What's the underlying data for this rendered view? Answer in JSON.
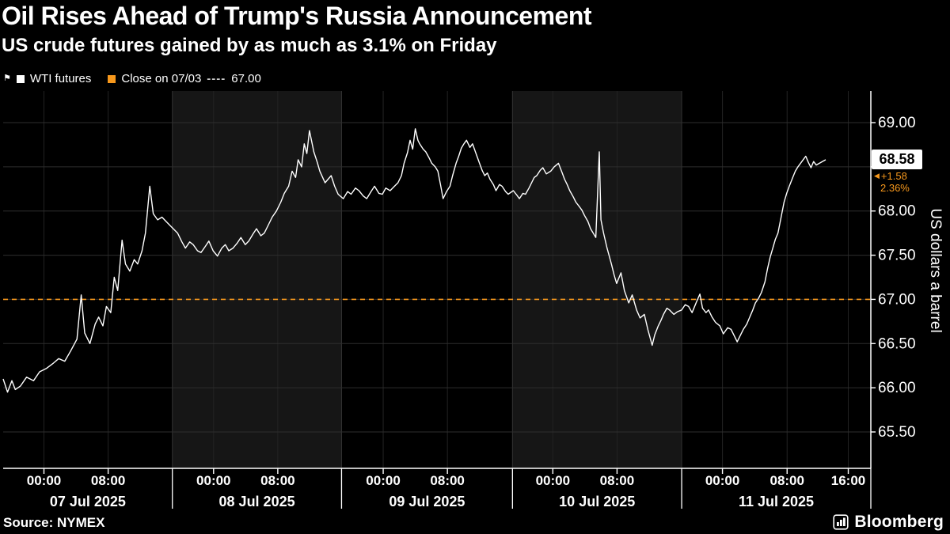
{
  "header": {
    "title": "Oil Rises Ahead of Trump's Russia Announcement",
    "subtitle": "US crude futures gained by as much as 3.1% on Friday"
  },
  "legend": {
    "wti_label": "WTI futures",
    "close_label": "Close on 07/03",
    "dash_sample": "----",
    "close_value": "67.00"
  },
  "footer": {
    "source": "Source: NYMEX",
    "brand": "Bloomberg"
  },
  "chart": {
    "y_axis_label": "US dollars a barrel",
    "last": {
      "price_label": "68.58",
      "change": "+1.58",
      "change_pct": "2.36%"
    },
    "colors": {
      "line": "#ffffff",
      "reference": "#f7981c",
      "band": "#161616",
      "background": "#000000",
      "grid_h": "#2e2e2e",
      "grid_v": "#232323",
      "boundary": "#333333",
      "frame": "#ffffff"
    }
  },
  "chart_data": {
    "type": "line",
    "title": "Oil Rises Ahead of Trump's Russia Announcement",
    "subtitle": "US crude futures gained by as much as 3.1% on Friday",
    "x_unit": "fraction of x-axis span, 07 Jul 2025 00:00 through 11 Jul 2025 ~16:00",
    "series": [
      {
        "name": "WTI futures",
        "color": "#ffffff",
        "points": [
          [
            0.0,
            66.1
          ],
          [
            0.005,
            65.95
          ],
          [
            0.01,
            66.08
          ],
          [
            0.014,
            65.98
          ],
          [
            0.02,
            66.02
          ],
          [
            0.027,
            66.12
          ],
          [
            0.035,
            66.08
          ],
          [
            0.042,
            66.18
          ],
          [
            0.05,
            66.22
          ],
          [
            0.058,
            66.28
          ],
          [
            0.064,
            66.33
          ],
          [
            0.071,
            66.3
          ],
          [
            0.078,
            66.42
          ],
          [
            0.085,
            66.55
          ],
          [
            0.09,
            67.05
          ],
          [
            0.094,
            66.62
          ],
          [
            0.1,
            66.5
          ],
          [
            0.106,
            66.72
          ],
          [
            0.11,
            66.8
          ],
          [
            0.115,
            66.7
          ],
          [
            0.119,
            66.92
          ],
          [
            0.124,
            66.85
          ],
          [
            0.128,
            67.25
          ],
          [
            0.132,
            67.1
          ],
          [
            0.137,
            67.67
          ],
          [
            0.141,
            67.4
          ],
          [
            0.146,
            67.32
          ],
          [
            0.151,
            67.45
          ],
          [
            0.155,
            67.4
          ],
          [
            0.16,
            67.55
          ],
          [
            0.164,
            67.75
          ],
          [
            0.169,
            68.28
          ],
          [
            0.173,
            67.97
          ],
          [
            0.178,
            67.9
          ],
          [
            0.183,
            67.93
          ],
          [
            0.188,
            67.88
          ],
          [
            0.192,
            67.84
          ],
          [
            0.201,
            67.75
          ],
          [
            0.206,
            67.65
          ],
          [
            0.21,
            67.58
          ],
          [
            0.215,
            67.65
          ],
          [
            0.219,
            67.62
          ],
          [
            0.224,
            67.55
          ],
          [
            0.228,
            67.53
          ],
          [
            0.233,
            67.6
          ],
          [
            0.237,
            67.66
          ],
          [
            0.242,
            67.55
          ],
          [
            0.247,
            67.49
          ],
          [
            0.252,
            67.58
          ],
          [
            0.256,
            67.62
          ],
          [
            0.26,
            67.55
          ],
          [
            0.265,
            67.58
          ],
          [
            0.27,
            67.64
          ],
          [
            0.274,
            67.7
          ],
          [
            0.279,
            67.62
          ],
          [
            0.283,
            67.66
          ],
          [
            0.288,
            67.74
          ],
          [
            0.292,
            67.8
          ],
          [
            0.297,
            67.72
          ],
          [
            0.301,
            67.75
          ],
          [
            0.306,
            67.85
          ],
          [
            0.31,
            67.93
          ],
          [
            0.315,
            68.0
          ],
          [
            0.32,
            68.1
          ],
          [
            0.324,
            68.2
          ],
          [
            0.329,
            68.28
          ],
          [
            0.333,
            68.45
          ],
          [
            0.337,
            68.38
          ],
          [
            0.34,
            68.58
          ],
          [
            0.344,
            68.5
          ],
          [
            0.347,
            68.76
          ],
          [
            0.35,
            68.65
          ],
          [
            0.353,
            68.91
          ],
          [
            0.358,
            68.67
          ],
          [
            0.362,
            68.55
          ],
          [
            0.365,
            68.45
          ],
          [
            0.371,
            68.32
          ],
          [
            0.378,
            68.4
          ],
          [
            0.382,
            68.28
          ],
          [
            0.386,
            68.19
          ],
          [
            0.392,
            68.14
          ],
          [
            0.397,
            68.22
          ],
          [
            0.401,
            68.19
          ],
          [
            0.406,
            68.26
          ],
          [
            0.41,
            68.23
          ],
          [
            0.415,
            68.17
          ],
          [
            0.419,
            68.14
          ],
          [
            0.424,
            68.22
          ],
          [
            0.428,
            68.28
          ],
          [
            0.433,
            68.2
          ],
          [
            0.437,
            68.19
          ],
          [
            0.441,
            68.26
          ],
          [
            0.446,
            68.23
          ],
          [
            0.451,
            68.28
          ],
          [
            0.455,
            68.32
          ],
          [
            0.459,
            68.4
          ],
          [
            0.462,
            68.54
          ],
          [
            0.466,
            68.66
          ],
          [
            0.469,
            68.8
          ],
          [
            0.472,
            68.7
          ],
          [
            0.475,
            68.93
          ],
          [
            0.478,
            68.8
          ],
          [
            0.48,
            68.76
          ],
          [
            0.484,
            68.7
          ],
          [
            0.487,
            68.67
          ],
          [
            0.491,
            68.6
          ],
          [
            0.494,
            68.54
          ],
          [
            0.498,
            68.5
          ],
          [
            0.501,
            68.45
          ],
          [
            0.504,
            68.3
          ],
          [
            0.507,
            68.14
          ],
          [
            0.511,
            68.22
          ],
          [
            0.515,
            68.28
          ],
          [
            0.518,
            68.4
          ],
          [
            0.522,
            68.54
          ],
          [
            0.525,
            68.62
          ],
          [
            0.528,
            68.71
          ],
          [
            0.531,
            68.76
          ],
          [
            0.534,
            68.8
          ],
          [
            0.538,
            68.72
          ],
          [
            0.541,
            68.76
          ],
          [
            0.545,
            68.65
          ],
          [
            0.549,
            68.54
          ],
          [
            0.552,
            68.46
          ],
          [
            0.555,
            68.4
          ],
          [
            0.558,
            68.43
          ],
          [
            0.561,
            68.36
          ],
          [
            0.565,
            68.3
          ],
          [
            0.568,
            68.23
          ],
          [
            0.572,
            68.3
          ],
          [
            0.575,
            68.28
          ],
          [
            0.579,
            68.22
          ],
          [
            0.582,
            68.19
          ],
          [
            0.588,
            68.23
          ],
          [
            0.592,
            68.18
          ],
          [
            0.595,
            68.14
          ],
          [
            0.599,
            68.2
          ],
          [
            0.602,
            68.19
          ],
          [
            0.606,
            68.26
          ],
          [
            0.609,
            68.32
          ],
          [
            0.612,
            68.38
          ],
          [
            0.615,
            68.4
          ],
          [
            0.619,
            68.46
          ],
          [
            0.622,
            68.49
          ],
          [
            0.626,
            68.42
          ],
          [
            0.631,
            68.45
          ],
          [
            0.635,
            68.5
          ],
          [
            0.64,
            68.54
          ],
          [
            0.644,
            68.44
          ],
          [
            0.647,
            68.36
          ],
          [
            0.65,
            68.3
          ],
          [
            0.653,
            68.23
          ],
          [
            0.657,
            68.16
          ],
          [
            0.66,
            68.1
          ],
          [
            0.664,
            68.05
          ],
          [
            0.667,
            68.01
          ],
          [
            0.67,
            67.95
          ],
          [
            0.674,
            67.88
          ],
          [
            0.677,
            67.8
          ],
          [
            0.68,
            67.75
          ],
          [
            0.683,
            67.7
          ],
          [
            0.687,
            68.67
          ],
          [
            0.689,
            67.9
          ],
          [
            0.692,
            67.75
          ],
          [
            0.696,
            67.58
          ],
          [
            0.701,
            67.4
          ],
          [
            0.704,
            67.28
          ],
          [
            0.707,
            67.18
          ],
          [
            0.712,
            67.3
          ],
          [
            0.716,
            67.1
          ],
          [
            0.721,
            66.96
          ],
          [
            0.725,
            67.05
          ],
          [
            0.73,
            66.88
          ],
          [
            0.734,
            66.79
          ],
          [
            0.739,
            66.83
          ],
          [
            0.743,
            66.66
          ],
          [
            0.748,
            66.48
          ],
          [
            0.751,
            66.6
          ],
          [
            0.755,
            66.7
          ],
          [
            0.758,
            66.76
          ],
          [
            0.761,
            66.83
          ],
          [
            0.765,
            66.9
          ],
          [
            0.768,
            66.88
          ],
          [
            0.773,
            66.83
          ],
          [
            0.777,
            66.86
          ],
          [
            0.782,
            66.88
          ],
          [
            0.786,
            66.94
          ],
          [
            0.79,
            66.92
          ],
          [
            0.794,
            66.85
          ],
          [
            0.799,
            66.97
          ],
          [
            0.803,
            67.06
          ],
          [
            0.806,
            66.9
          ],
          [
            0.81,
            66.85
          ],
          [
            0.813,
            66.88
          ],
          [
            0.817,
            66.8
          ],
          [
            0.821,
            66.74
          ],
          [
            0.826,
            66.7
          ],
          [
            0.83,
            66.61
          ],
          [
            0.835,
            66.68
          ],
          [
            0.839,
            66.66
          ],
          [
            0.843,
            66.58
          ],
          [
            0.846,
            66.52
          ],
          [
            0.85,
            66.6
          ],
          [
            0.853,
            66.66
          ],
          [
            0.857,
            66.72
          ],
          [
            0.86,
            66.79
          ],
          [
            0.864,
            66.88
          ],
          [
            0.867,
            66.96
          ],
          [
            0.871,
            67.02
          ],
          [
            0.874,
            67.08
          ],
          [
            0.878,
            67.2
          ],
          [
            0.881,
            67.35
          ],
          [
            0.884,
            67.48
          ],
          [
            0.887,
            67.58
          ],
          [
            0.89,
            67.68
          ],
          [
            0.893,
            67.75
          ],
          [
            0.897,
            67.95
          ],
          [
            0.9,
            68.1
          ],
          [
            0.903,
            68.2
          ],
          [
            0.906,
            68.28
          ],
          [
            0.91,
            68.38
          ],
          [
            0.913,
            68.45
          ],
          [
            0.916,
            68.5
          ],
          [
            0.919,
            68.54
          ],
          [
            0.922,
            68.58
          ],
          [
            0.925,
            68.62
          ],
          [
            0.928,
            68.55
          ],
          [
            0.931,
            68.49
          ],
          [
            0.934,
            68.56
          ],
          [
            0.937,
            68.52
          ],
          [
            0.948,
            68.58
          ]
        ]
      }
    ],
    "reference_line": {
      "label": "Close on 07/03",
      "value": 67.0,
      "color": "#f7981c",
      "style": "dashed"
    },
    "last_point": {
      "price": 68.58,
      "change": 1.58,
      "change_pct": 2.36
    },
    "y_axis": {
      "label": "US dollars a barrel",
      "tick_values": [
        65.5,
        66.0,
        66.5,
        67.0,
        67.5,
        68.0,
        68.5,
        69.0
      ],
      "visible_tick_labels": [
        "69.00",
        "68.00",
        "67.50",
        "67.00",
        "66.50",
        "66.00",
        "65.50"
      ]
    },
    "x_axis": {
      "day_bands": [
        {
          "label": "07 Jul 2025",
          "start": 0.0,
          "end": 0.195,
          "shaded": false
        },
        {
          "label": "08 Jul 2025",
          "start": 0.195,
          "end": 0.39,
          "shaded": true
        },
        {
          "label": "09 Jul 2025",
          "start": 0.39,
          "end": 0.587,
          "shaded": false
        },
        {
          "label": "10 Jul 2025",
          "start": 0.587,
          "end": 0.782,
          "shaded": true
        },
        {
          "label": "11 Jul 2025",
          "start": 0.782,
          "end": 1.0,
          "shaded": false
        }
      ],
      "ticks": [
        {
          "label": "00:00",
          "f": 0.047
        },
        {
          "label": "08:00",
          "f": 0.121
        },
        {
          "label": "00:00",
          "f": 0.2425
        },
        {
          "label": "08:00",
          "f": 0.3165
        },
        {
          "label": "00:00",
          "f": 0.438
        },
        {
          "label": "08:00",
          "f": 0.512
        },
        {
          "label": "00:00",
          "f": 0.6335
        },
        {
          "label": "08:00",
          "f": 0.7075
        },
        {
          "label": "00:00",
          "f": 0.829
        },
        {
          "label": "08:00",
          "f": 0.9035
        },
        {
          "label": "16:00",
          "f": 0.974
        }
      ]
    },
    "legend": [
      "WTI futures",
      "Close on 07/03 ---- 67.00"
    ],
    "source": "Source: NYMEX"
  }
}
